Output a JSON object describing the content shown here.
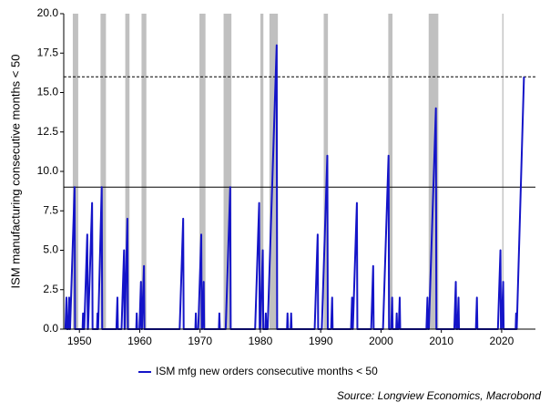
{
  "chart_data": {
    "type": "line",
    "y_label": "ISM manufacturing consecutive months < 50",
    "source": "Source: Longview Economics, Macrobond",
    "xlim": [
      1947.4,
      2025.6
    ],
    "xticks": [
      1950,
      1960,
      1970,
      1980,
      1990,
      2000,
      2010,
      2020
    ],
    "ylim": [
      0,
      20
    ],
    "yticks": [
      {
        "value": 0,
        "label": "0.0"
      },
      2.5,
      {
        "value": 5,
        "label": "5.0"
      },
      7.5,
      {
        "value": 10,
        "label": "10.0"
      },
      12.5,
      {
        "value": 15,
        "label": "15.0"
      },
      17.5,
      {
        "value": 20,
        "label": "20.0"
      }
    ],
    "recession_color": "#c0c0c0",
    "recessions": [
      [
        1948.9,
        1949.8
      ],
      [
        1953.5,
        1954.4
      ],
      [
        1957.6,
        1958.3
      ],
      [
        1960.3,
        1961.1
      ],
      [
        1969.9,
        1970.9
      ],
      [
        1973.9,
        1975.2
      ],
      [
        1980.0,
        1980.5
      ],
      [
        1981.5,
        1982.9
      ],
      [
        1990.5,
        1991.2
      ],
      [
        2001.2,
        2001.9
      ],
      [
        2007.9,
        2009.5
      ],
      [
        2020.1,
        2020.3
      ]
    ],
    "reference_lines": [
      {
        "value": 9,
        "style": "solid"
      },
      {
        "value": 16,
        "style": "dashed"
      }
    ],
    "x": [
      1947.68,
      1947.85,
      1947.93,
      1948.13,
      1948.3,
      1948.38,
      1948.45,
      1949.2,
      1949.28,
      1950.52,
      1950.6,
      1950.68,
      1950.8,
      1951.3,
      1951.38,
      1951.43,
      1952.1,
      1952.18,
      1952.92,
      1953.0,
      1953.08,
      1953.1,
      1953.7,
      1953.78,
      1956.13,
      1956.3,
      1956.38,
      1956.98,
      1957.4,
      1957.48,
      1957.5,
      1957.95,
      1958.03,
      1959.42,
      1959.5,
      1959.58,
      1959.95,
      1960.2,
      1960.28,
      1960.37,
      1960.7,
      1960.78,
      1966.62,
      1967.2,
      1967.28,
      1969.22,
      1969.3,
      1969.38,
      1969.7,
      1970.2,
      1970.28,
      1970.35,
      1970.6,
      1970.68,
      1973.12,
      1973.2,
      1973.28,
      1974.25,
      1975.0,
      1975.08,
      1979.13,
      1979.8,
      1979.88,
      1979.98,
      1980.4,
      1980.48,
      1980.82,
      1980.9,
      1980.98,
      1981.2,
      1982.7,
      1982.78,
      1984.42,
      1984.5,
      1984.58,
      1985.02,
      1985.1,
      1985.18,
      1989.0,
      1989.5,
      1989.58,
      1990.18,
      1991.1,
      1991.18,
      1991.73,
      1991.9,
      1991.98,
      1995.03,
      1995.2,
      1995.28,
      1995.33,
      1996.0,
      1996.08,
      1998.37,
      1998.7,
      1998.78,
      2000.33,
      2001.25,
      2001.33,
      2001.68,
      2001.85,
      2001.93,
      2002.52,
      2002.6,
      2002.68,
      2002.93,
      2003.1,
      2003.18,
      2007.53,
      2007.7,
      2007.78,
      2007.93,
      2009.1,
      2009.18,
      2012.15,
      2012.4,
      2012.48,
      2012.68,
      2012.85,
      2012.93,
      2015.73,
      2015.9,
      2015.98,
      2019.38,
      2019.8,
      2019.88,
      2020.0,
      2020.25,
      2020.33,
      2022.32,
      2022.4,
      2022.48,
      2022.5,
      2023.7
    ],
    "series": [
      {
        "name": "ISM mfg new orders consecutive months < 50",
        "color": "#1414c8",
        "values": [
          0,
          2,
          0,
          0,
          2,
          0,
          0,
          9,
          0,
          0,
          1,
          0,
          0,
          6,
          0,
          0,
          8,
          0,
          0,
          1,
          0,
          0,
          9,
          0,
          0,
          2,
          0,
          0,
          5,
          0,
          0,
          7,
          0,
          0,
          1,
          0,
          0,
          3,
          0,
          0,
          4,
          0,
          0,
          7,
          0,
          0,
          1,
          0,
          0,
          6,
          0,
          0,
          3,
          0,
          0,
          1,
          0,
          0,
          9,
          0,
          0,
          8,
          0,
          0,
          5,
          0,
          0,
          1,
          0,
          0,
          18,
          0,
          0,
          1,
          0,
          0,
          1,
          0,
          0,
          6,
          0,
          0,
          11,
          0,
          0,
          2,
          0,
          0,
          2,
          0,
          0,
          8,
          0,
          0,
          4,
          0,
          0,
          11,
          0,
          0,
          2,
          0,
          0,
          1,
          0,
          0,
          2,
          0,
          0,
          2,
          0,
          0,
          14,
          0,
          0,
          3,
          0,
          0,
          2,
          0,
          0,
          2,
          0,
          0,
          5,
          0,
          0,
          3,
          0,
          0,
          1,
          0,
          0,
          16
        ]
      }
    ]
  }
}
